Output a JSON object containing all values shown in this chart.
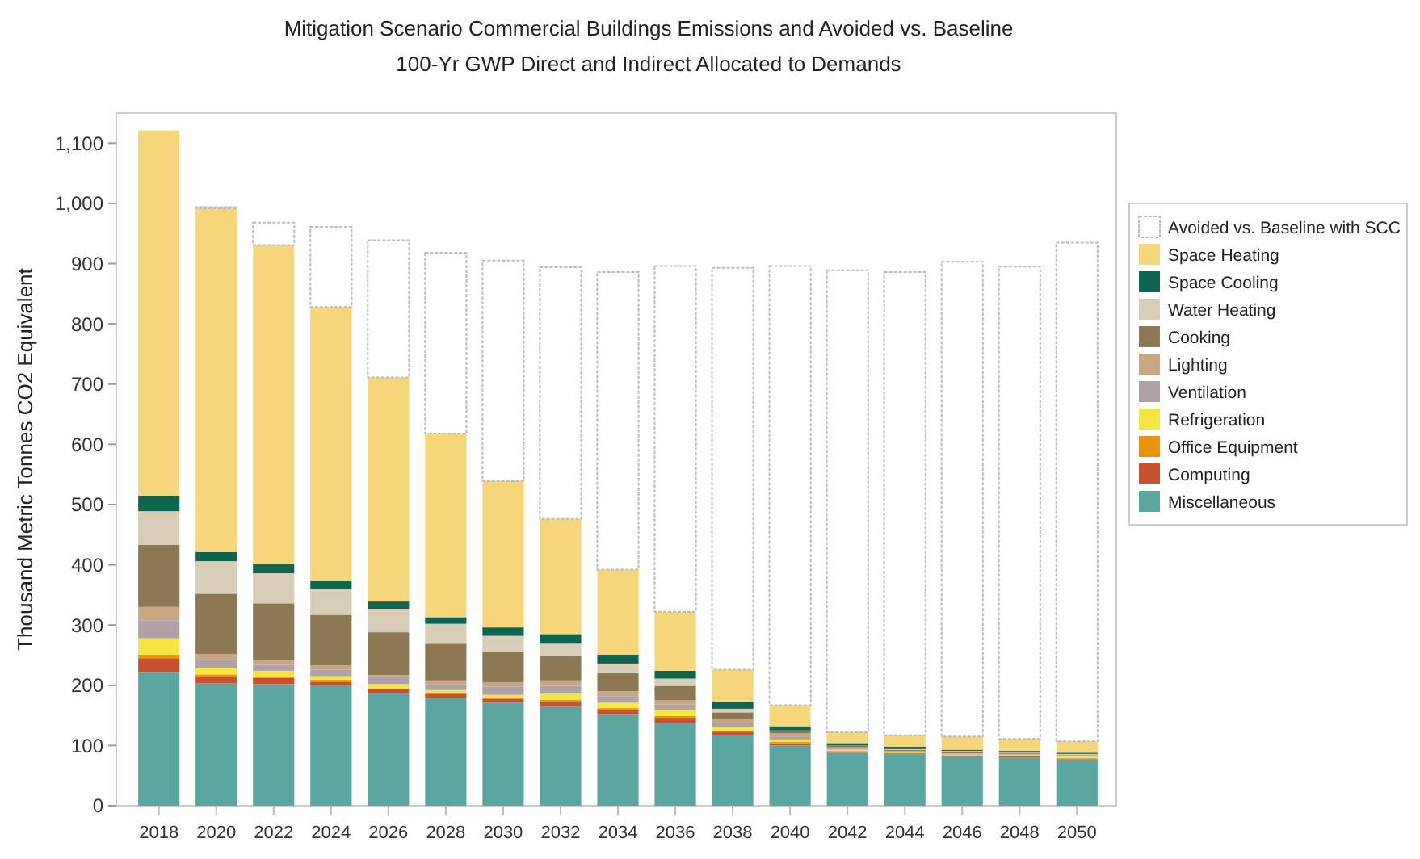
{
  "chart_data": {
    "type": "bar",
    "stacked": true,
    "title": "Mitigation Scenario Commercial Buildings Emissions and Avoided vs. Baseline",
    "subtitle": "100-Yr GWP Direct and Indirect Allocated to Demands",
    "ylabel": "Thousand Metric Tonnes CO2 Equivalent",
    "categories": [
      "2018",
      "2020",
      "2022",
      "2024",
      "2026",
      "2028",
      "2030",
      "2032",
      "2034",
      "2036",
      "2038",
      "2040",
      "2042",
      "2044",
      "2046",
      "2048",
      "2050"
    ],
    "series": [
      {
        "name": "Miscellaneous",
        "color": "#5ba6a0",
        "values": [
          222,
          203,
          202,
          200,
          187,
          179,
          171,
          164,
          151,
          138,
          117,
          100,
          88,
          86,
          82,
          80,
          77
        ]
      },
      {
        "name": "Computing",
        "color": "#c8522f",
        "values": [
          23,
          11,
          10,
          6,
          6,
          6,
          6,
          9,
          8,
          8,
          6,
          4,
          2,
          1,
          1,
          2,
          1
        ]
      },
      {
        "name": "Office Equipment",
        "color": "#e8950c",
        "values": [
          6,
          4,
          3,
          3,
          2,
          2,
          2,
          3,
          3,
          3,
          2,
          2,
          1,
          1,
          1,
          1,
          1
        ]
      },
      {
        "name": "Refrigeration",
        "color": "#f5e53f",
        "values": [
          27,
          10,
          9,
          6,
          7,
          5,
          5,
          10,
          9,
          10,
          6,
          4,
          2,
          1,
          1,
          1,
          3
        ]
      },
      {
        "name": "Ventilation",
        "color": "#b0a1a7",
        "values": [
          30,
          14,
          10,
          11,
          12,
          10,
          14,
          13,
          11,
          9,
          6,
          5,
          2,
          1,
          1,
          1,
          1
        ]
      },
      {
        "name": "Lighting",
        "color": "#c9a582",
        "values": [
          22,
          10,
          7,
          7,
          3,
          6,
          7,
          9,
          8,
          7,
          6,
          5,
          2,
          1,
          1,
          1,
          1
        ]
      },
      {
        "name": "Cooking",
        "color": "#8c7852",
        "values": [
          103,
          100,
          95,
          84,
          71,
          61,
          51,
          40,
          30,
          24,
          12,
          5,
          3,
          2,
          3,
          2,
          1
        ]
      },
      {
        "name": "Water Heating",
        "color": "#d8cdb6",
        "values": [
          56,
          54,
          50,
          43,
          39,
          33,
          26,
          21,
          16,
          12,
          6,
          null,
          null,
          1,
          1,
          1,
          1
        ]
      },
      {
        "name": "Space Cooling",
        "color": "#0e6651",
        "values": [
          26,
          15,
          15,
          13,
          12,
          11,
          14,
          16,
          15,
          13,
          12,
          7,
          4,
          4,
          2,
          2,
          2
        ]
      },
      {
        "name": "Space Heating",
        "color": "#f6d67a",
        "values": [
          606,
          571,
          530,
          455,
          372,
          305,
          243,
          191,
          141,
          98,
          53,
          35,
          18,
          19,
          22,
          20,
          19
        ]
      },
      {
        "name": "Avoided vs. Baseline with SCC",
        "color": "#ffffff",
        "values": [
          0,
          2,
          37,
          133,
          228,
          300,
          366,
          418,
          494,
          574,
          667,
          729,
          767,
          769,
          788,
          784,
          828
        ]
      }
    ],
    "ylim": [
      0,
      1150
    ],
    "yticks": [
      0,
      100,
      200,
      300,
      400,
      500,
      600,
      700,
      800,
      900,
      {
        "value": 1000,
        "label": "1,000"
      },
      {
        "value": 1100,
        "label": "1,100"
      }
    ],
    "legend": "right"
  }
}
